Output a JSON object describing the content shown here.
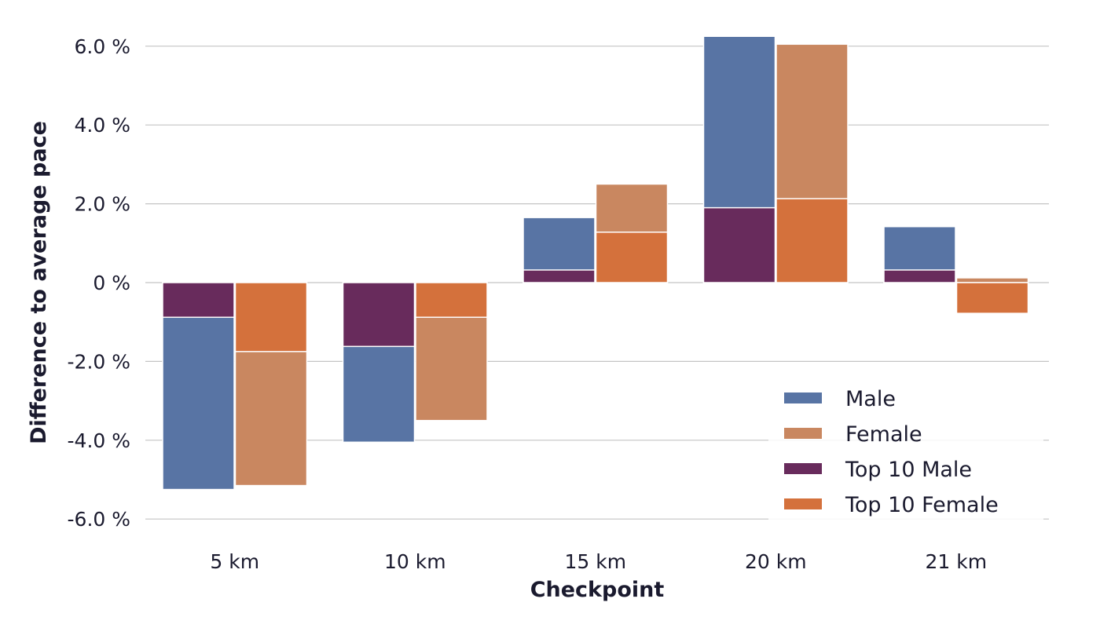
{
  "chart_data": {
    "type": "bar",
    "title": "",
    "xlabel": "Checkpoint",
    "ylabel": "Difference to average pace",
    "categories": [
      "5 km",
      "10 km",
      "15 km",
      "20 km",
      "21 km"
    ],
    "ylim": [
      -6.6,
      6.4
    ],
    "yticks": [
      -6,
      -4,
      -2,
      0,
      2,
      4,
      6
    ],
    "ytick_labels": [
      "-6.0 %",
      "-4.0 %",
      "-2.0 %",
      "0 %",
      "2.0 %",
      "4.0 %",
      "6.0 %"
    ],
    "grid": true,
    "legend_position": "bottom-right",
    "layout": "overlapping bars per group: overall series drawn behind, Top 10 series drawn in front",
    "series": [
      {
        "name": "Male",
        "key": "male",
        "color": "#5874a4",
        "values": [
          -5.25,
          -4.05,
          1.65,
          6.25,
          1.42
        ]
      },
      {
        "name": "Female",
        "key": "female",
        "color": "#c98760",
        "values": [
          -5.15,
          -3.5,
          2.5,
          6.05,
          0.12
        ]
      },
      {
        "name": "Top 10 Male",
        "key": "top10male",
        "color": "#682b5c",
        "values": [
          -0.88,
          -1.62,
          0.32,
          1.9,
          0.32
        ]
      },
      {
        "name": "Top 10 Female",
        "key": "top10female",
        "color": "#d4713c",
        "values": [
          -1.75,
          -0.88,
          1.28,
          2.13,
          -0.78
        ]
      }
    ]
  }
}
